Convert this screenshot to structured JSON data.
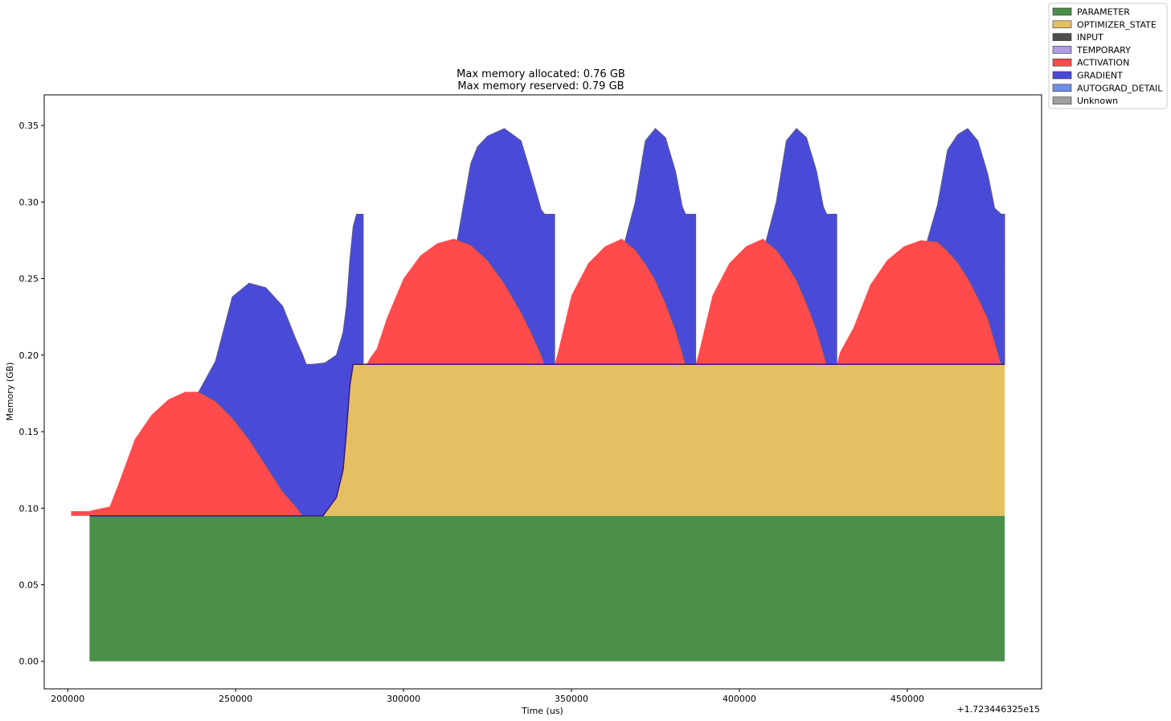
{
  "chart_data": {
    "type": "area",
    "stacked": true,
    "title_lines": [
      "Max memory allocated: 0.76 GB",
      "Max memory reserved: 0.79 GB"
    ],
    "xlabel": "Time (us)",
    "ylabel": "Memory (GB)",
    "x_offset_label": "+1.723446325e15",
    "xlim": [
      193000,
      490000
    ],
    "ylim": [
      -0.018,
      0.37
    ],
    "x_ticks": [
      200000,
      250000,
      300000,
      350000,
      400000,
      450000
    ],
    "x_tick_labels": [
      "200000",
      "250000",
      "300000",
      "350000",
      "400000",
      "450000"
    ],
    "y_ticks": [
      0.0,
      0.05,
      0.1,
      0.15,
      0.2,
      0.25,
      0.3,
      0.35
    ],
    "y_tick_labels": [
      "0.00",
      "0.05",
      "0.10",
      "0.15",
      "0.20",
      "0.25",
      "0.30",
      "0.35"
    ],
    "legend_position": "upper-right-outside",
    "x": [
      206500,
      208500,
      212500,
      215000,
      220000,
      225000,
      230000,
      235000,
      239000,
      244000,
      249000,
      254000,
      259000,
      264000,
      268000,
      270000,
      271000,
      272000,
      276000,
      280000,
      282000,
      283000,
      284000,
      285000,
      286000,
      287000,
      288000,
      289000,
      290000,
      292000,
      295000,
      300000,
      305000,
      310000,
      315000,
      320000,
      325000,
      330000,
      335000,
      340000,
      342000,
      345000,
      346000,
      350000,
      355000,
      360000,
      365000,
      370000,
      375000,
      380000,
      384000,
      387000,
      388000,
      392000,
      397000,
      402000,
      407000,
      412000,
      417000,
      422000,
      426000,
      429000,
      430000,
      434000,
      439000,
      444000,
      449000,
      454000,
      459000,
      464000,
      469000,
      474000,
      478000,
      479000
    ],
    "series": [
      {
        "name": "PARAMETER",
        "color": "#4a8f4a",
        "values": [
          0.095,
          0.095,
          0.095,
          0.095,
          0.095,
          0.095,
          0.095,
          0.095,
          0.095,
          0.095,
          0.095,
          0.095,
          0.095,
          0.095,
          0.095,
          0.095,
          0.095,
          0.095,
          0.095,
          0.095,
          0.095,
          0.095,
          0.095,
          0.095,
          0.095,
          0.095,
          0.095,
          0.095,
          0.095,
          0.095,
          0.095,
          0.095,
          0.095,
          0.095,
          0.095,
          0.095,
          0.095,
          0.095,
          0.095,
          0.095,
          0.095,
          0.095,
          0.095,
          0.095,
          0.095,
          0.095,
          0.095,
          0.095,
          0.095,
          0.095,
          0.095,
          0.095,
          0.095,
          0.095,
          0.095,
          0.095,
          0.095,
          0.095,
          0.095,
          0.095,
          0.095,
          0.095,
          0.095,
          0.095,
          0.095,
          0.095,
          0.095,
          0.095,
          0.095,
          0.095,
          0.095,
          0.095,
          0.095,
          0.095
        ]
      },
      {
        "name": "OPTIMIZER_STATE",
        "color": "#e6bf62",
        "values": [
          0,
          0,
          0,
          0,
          0,
          0,
          0,
          0,
          0,
          0,
          0,
          0,
          0,
          0,
          0,
          0,
          0,
          0,
          0,
          0.012,
          0.03,
          0.055,
          0.085,
          0.099,
          0.099,
          0.099,
          0.099,
          0.099,
          0.099,
          0.099,
          0.099,
          0.099,
          0.099,
          0.099,
          0.099,
          0.099,
          0.099,
          0.099,
          0.099,
          0.099,
          0.099,
          0.099,
          0.099,
          0.099,
          0.099,
          0.099,
          0.099,
          0.099,
          0.099,
          0.099,
          0.099,
          0.099,
          0.099,
          0.099,
          0.099,
          0.099,
          0.099,
          0.099,
          0.099,
          0.099,
          0.099,
          0.099,
          0.099,
          0.099,
          0.099,
          0.099,
          0.099,
          0.099,
          0.099,
          0.099,
          0.099,
          0.099,
          0.099,
          0.099
        ]
      },
      {
        "name": "INPUT",
        "color": "#4d4d4d",
        "values": [
          0,
          0,
          0,
          0,
          0,
          0,
          0,
          0,
          0,
          0,
          0,
          0,
          0,
          0,
          0,
          0,
          0,
          0,
          0,
          0,
          0,
          0,
          0,
          0,
          0,
          0,
          0,
          0,
          0,
          0,
          0,
          0,
          0,
          0,
          0,
          0,
          0,
          0,
          0,
          0,
          0,
          0,
          0,
          0,
          0,
          0,
          0,
          0,
          0,
          0,
          0,
          0,
          0,
          0,
          0,
          0,
          0,
          0,
          0,
          0,
          0,
          0,
          0,
          0,
          0,
          0,
          0,
          0,
          0,
          0,
          0,
          0,
          0,
          0
        ]
      },
      {
        "name": "TEMPORARY",
        "color": "#b19ce6",
        "values": [
          0,
          0,
          0,
          0,
          0,
          0,
          0,
          0,
          0,
          0,
          0,
          0,
          0,
          0,
          0,
          0,
          0,
          0,
          0,
          0,
          0,
          0,
          0,
          0,
          0,
          0,
          0,
          0,
          0,
          0,
          0,
          0,
          0,
          0,
          0,
          0,
          0,
          0,
          0,
          0,
          0,
          0,
          0,
          0,
          0,
          0,
          0,
          0,
          0,
          0,
          0,
          0,
          0,
          0,
          0,
          0,
          0,
          0,
          0,
          0,
          0,
          0,
          0,
          0,
          0,
          0,
          0,
          0,
          0,
          0,
          0,
          0,
          0,
          0
        ]
      },
      {
        "name": "ACTIVATION",
        "color": "#ff4b4b",
        "values": [
          0.003,
          0.004,
          0.006,
          0.02,
          0.05,
          0.066,
          0.076,
          0.081,
          0.081,
          0.075,
          0.064,
          0.05,
          0.033,
          0.016,
          0.006,
          0.0,
          0.0,
          0.0,
          0.0,
          0.0,
          0.0,
          0.0,
          0.0,
          0.0,
          0.0,
          0.0,
          0.0,
          0.0,
          0.004,
          0.01,
          0.03,
          0.056,
          0.071,
          0.079,
          0.082,
          0.078,
          0.068,
          0.053,
          0.034,
          0.012,
          0.0,
          0.0,
          0.008,
          0.045,
          0.066,
          0.077,
          0.082,
          0.073,
          0.055,
          0.03,
          0.0,
          0.0,
          0.008,
          0.045,
          0.066,
          0.077,
          0.082,
          0.073,
          0.055,
          0.03,
          0.0,
          0.0,
          0.008,
          0.024,
          0.052,
          0.068,
          0.077,
          0.081,
          0.08,
          0.07,
          0.053,
          0.03,
          0.0,
          0.0
        ]
      },
      {
        "name": "GRADIENT",
        "color": "#4a4ad9",
        "values": [
          0,
          0,
          0,
          0,
          0,
          0,
          0,
          0,
          0,
          0.0,
          0.02,
          0.06,
          0.09,
          0.1,
          0.095,
          0.094,
          0.099,
          0.099,
          0.1,
          0.088,
          0.07,
          0.045,
          0.015,
          0.0,
          0.0,
          0.0,
          0.0,
          0.0,
          0.0,
          0.0,
          0.0,
          0.0,
          0.0,
          0.0,
          0.0,
          0.0,
          0.0,
          0.0,
          0.0,
          0.0,
          0.0,
          0.0,
          0.0,
          0.0,
          0.0,
          0.0,
          0.0,
          0.0,
          0.0,
          0.0,
          0.0,
          0.0,
          0.0,
          0.0,
          0.0,
          0.0,
          0.0,
          0.0,
          0.0,
          0.0,
          0.0,
          0.0,
          0.0,
          0.0,
          0.0,
          0.0,
          0.0,
          0.0,
          0.0,
          0.0,
          0.0,
          0.0,
          0.0,
          0.0
        ]
      },
      {
        "name": "AUTOGRAD_DETAIL",
        "color": "#6c8fe6",
        "values": [
          0,
          0,
          0,
          0,
          0,
          0,
          0,
          0,
          0,
          0,
          0,
          0,
          0,
          0,
          0,
          0,
          0,
          0,
          0,
          0,
          0,
          0,
          0,
          0,
          0,
          0,
          0,
          0,
          0,
          0,
          0,
          0,
          0,
          0,
          0,
          0,
          0,
          0,
          0,
          0,
          0,
          0,
          0,
          0,
          0,
          0,
          0,
          0,
          0,
          0,
          0,
          0,
          0,
          0,
          0,
          0,
          0,
          0,
          0,
          0,
          0,
          0,
          0,
          0,
          0,
          0,
          0,
          0,
          0,
          0,
          0,
          0,
          0,
          0
        ]
      },
      {
        "name": "Unknown",
        "color": "#a0a0a0",
        "values": [
          0,
          0,
          0,
          0,
          0,
          0,
          0,
          0,
          0,
          0,
          0,
          0,
          0,
          0,
          0,
          0,
          0,
          0,
          0,
          0,
          0,
          0,
          0,
          0,
          0,
          0,
          0,
          0,
          0,
          0,
          0,
          0,
          0,
          0,
          0,
          0,
          0,
          0,
          0,
          0,
          0,
          0,
          0,
          0,
          0,
          0,
          0,
          0,
          0,
          0,
          0,
          0,
          0,
          0,
          0,
          0,
          0,
          0,
          0,
          0,
          0,
          0,
          0,
          0,
          0,
          0,
          0,
          0,
          0,
          0,
          0,
          0,
          0,
          0
        ]
      }
    ],
    "gradient_segments": [
      {
        "x": [
          239000,
          244000,
          249000,
          254000,
          259000,
          264000,
          268000,
          270000,
          271000,
          272000,
          276000,
          280000,
          282000,
          283000,
          284000,
          285000,
          286000,
          287000,
          288000
        ],
        "top": [
          0.176,
          0.196,
          0.238,
          0.247,
          0.244,
          0.232,
          0.21,
          0.2,
          0.194,
          0.194,
          0.194,
          0.2,
          0.215,
          0.232,
          0.262,
          0.284,
          0.292,
          0.292,
          0.292
        ]
      },
      {
        "x": [
          316000,
          318000,
          320000,
          322000,
          325000,
          330000,
          335000,
          338000,
          341000,
          342000,
          345000
        ],
        "top": [
          0.275,
          0.3,
          0.325,
          0.336,
          0.343,
          0.348,
          0.34,
          0.318,
          0.295,
          0.292,
          0.292
        ]
      },
      {
        "x": [
          366000,
          369000,
          372000,
          375000,
          378000,
          381000,
          383000,
          384000,
          387000
        ],
        "top": [
          0.275,
          0.3,
          0.34,
          0.348,
          0.342,
          0.32,
          0.297,
          0.292,
          0.292
        ]
      },
      {
        "x": [
          408000,
          411000,
          414000,
          417000,
          420000,
          423000,
          425000,
          426000,
          429000
        ],
        "top": [
          0.275,
          0.3,
          0.34,
          0.348,
          0.342,
          0.32,
          0.297,
          0.292,
          0.292
        ]
      },
      {
        "x": [
          456000,
          459000,
          462000,
          465000,
          468000,
          471000,
          474000,
          476000,
          478000,
          479000
        ],
        "top": [
          0.275,
          0.298,
          0.334,
          0.344,
          0.348,
          0.34,
          0.318,
          0.296,
          0.292,
          0.292
        ]
      }
    ],
    "bumps": [
      {
        "x": [
          201000,
          206500,
          208000,
          212500,
          215000,
          220000,
          225000,
          230000,
          235000,
          239000,
          244000,
          249000,
          254000,
          259000,
          264000,
          268000,
          270000,
          271000
        ],
        "top": [
          0.098,
          0.098,
          0.099,
          0.101,
          0.115,
          0.145,
          0.161,
          0.171,
          0.176,
          0.176,
          0.17,
          0.159,
          0.145,
          0.128,
          0.111,
          0.101,
          0.095,
          0.095
        ]
      }
    ]
  },
  "legend": {
    "items": [
      "PARAMETER",
      "OPTIMIZER_STATE",
      "INPUT",
      "TEMPORARY",
      "ACTIVATION",
      "GRADIENT",
      "AUTOGRAD_DETAIL",
      "Unknown"
    ]
  }
}
